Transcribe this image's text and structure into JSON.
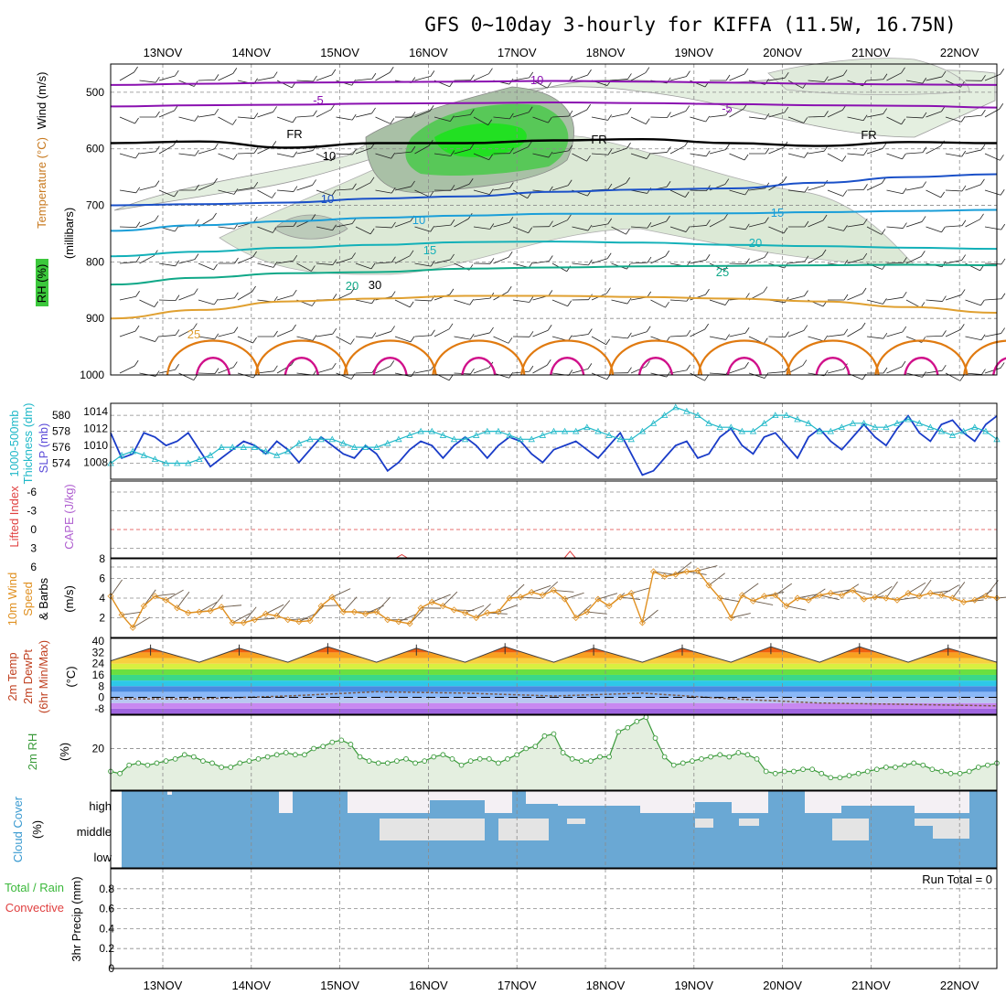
{
  "title": "GFS 0~10day 3-hourly for KIFFA (11.5W, 16.75N)",
  "days": [
    "13NOV",
    "14NOV",
    "15NOV",
    "16NOV",
    "17NOV",
    "18NOV",
    "19NOV",
    "20NOV",
    "21NOV",
    "22NOV"
  ],
  "colors": {
    "temp_warm": "#e07a10",
    "temp_hot": "#d0108a",
    "temp_cold": "#1a50c8",
    "temp_cool": "#1aa0d8",
    "temp_mild": "#10a888",
    "temp_neg": "#8a10b0",
    "rh": "#3cc83c",
    "slp": "#1a3cc8",
    "thick": "#20b8c8",
    "wind": "#e09020",
    "rh2m": "#3a9a3a",
    "cloud": "#6aa8d4"
  },
  "chart_data": [
    {
      "id": "upper_air",
      "type": "contour",
      "ylabel_parts": [
        "Wind (m/s)",
        "Temperature (°C)",
        "RH (%)",
        "(millibars)"
      ],
      "ylabel_colors": [
        "#000000",
        "#c87a20",
        "#3cc83c",
        "#000000"
      ],
      "y_ticks": [
        500,
        600,
        700,
        800,
        900,
        1000
      ],
      "ylim": [
        450,
        1000
      ],
      "isotherms": [
        {
          "label": "-10",
          "color": "#8a10b0",
          "levels": [
            487,
            485,
            483,
            482,
            481,
            480,
            481,
            483,
            485,
            486,
            487
          ]
        },
        {
          "label": "-5",
          "color": "#8a10b0",
          "levels": [
            525,
            523,
            522,
            520,
            519,
            518,
            519,
            521,
            523,
            524,
            527
          ]
        },
        {
          "label": "FR",
          "color": "#000000",
          "levels": [
            590,
            587,
            598,
            590,
            590,
            585,
            583,
            590,
            595,
            588,
            590
          ]
        },
        {
          "label": "-5",
          "color": "#1a50c8",
          "levels": [
            700,
            698,
            695,
            688,
            684,
            676,
            672,
            670,
            660,
            650,
            645
          ]
        },
        {
          "label": "10",
          "color": "#1a9ed8",
          "levels": [
            745,
            735,
            728,
            722,
            718,
            715,
            715,
            714,
            712,
            710,
            708
          ]
        },
        {
          "label": "15",
          "color": "#12b0b8",
          "levels": [
            790,
            782,
            775,
            770,
            765,
            764,
            766,
            770,
            772,
            775,
            777
          ]
        },
        {
          "label": "20",
          "color": "#10a888",
          "levels": [
            840,
            828,
            820,
            818,
            812,
            810,
            808,
            807,
            806,
            805,
            806
          ]
        },
        {
          "label": "25",
          "color": "#e0a030",
          "levels": [
            900,
            885,
            870,
            865,
            860,
            860,
            862,
            865,
            870,
            880,
            890
          ]
        }
      ],
      "rh_contours": [
        "10",
        "30"
      ],
      "fr_labels": [
        "FR",
        "FR",
        "FR"
      ],
      "temp_labels": [
        "-10",
        "-5",
        "-5",
        "10",
        "10",
        "15",
        "15",
        "20",
        "20",
        "25"
      ]
    },
    {
      "id": "slp_thickness",
      "type": "line",
      "ylabel_thick": "Thickness (dm)",
      "ylabel_thick_top": "1000-500mb",
      "ylabel_slp": "SLP (mb)",
      "thick_ticks": [
        574,
        576,
        578,
        580
      ],
      "slp_ticks": [
        1008,
        1010,
        1012,
        1014
      ],
      "thick_ylim": [
        572,
        581.5
      ],
      "slp_ylim": [
        1006,
        1015
      ],
      "slp": [
        1011.5,
        1008.5,
        1009.0,
        1011.5,
        1011.0,
        1010.0,
        1010.5,
        1011.5,
        1009.5,
        1007.5,
        1008.5,
        1009.5,
        1010.5,
        1010.0,
        1009.0,
        1010.5,
        1009.5,
        1008.0,
        1009.5,
        1011.0,
        1010.0,
        1009.0,
        1008.5,
        1010.0,
        1009.0,
        1007.0,
        1008.0,
        1009.5,
        1010.5,
        1010.0,
        1008.5,
        1010.0,
        1011.0,
        1010.0,
        1008.5,
        1010.0,
        1011.0,
        1010.5,
        1009.0,
        1008.0,
        1009.5,
        1010.0,
        1010.5,
        1009.5,
        1008.5,
        1010.0,
        1011.5,
        1009.0,
        1006.5,
        1007.0,
        1008.5,
        1010.0,
        1010.5,
        1008.5,
        1009.0,
        1011.0,
        1012.0,
        1010.0,
        1009.0,
        1011.0,
        1011.5,
        1010.0,
        1008.5,
        1011.0,
        1012.0,
        1010.5,
        1009.5,
        1011.0,
        1012.5,
        1011.0,
        1010.0,
        1012.0,
        1013.5,
        1011.5,
        1010.5,
        1012.5,
        1013.0,
        1011.5,
        1010.5,
        1012.5,
        1013.5
      ],
      "thickness": [
        574.0,
        575.0,
        575.5,
        575.0,
        574.5,
        574.0,
        574.0,
        574.0,
        574.5,
        575.0,
        576.0,
        576.0,
        576.0,
        576.0,
        575.5,
        575.0,
        575.5,
        576.5,
        577.0,
        577.0,
        577.0,
        576.5,
        576.0,
        576.0,
        576.0,
        576.5,
        577.0,
        577.5,
        578.0,
        578.0,
        577.5,
        577.0,
        577.0,
        577.5,
        578.0,
        578.0,
        577.5,
        577.0,
        577.0,
        577.5,
        578.0,
        578.0,
        578.0,
        578.5,
        578.0,
        577.5,
        577.0,
        577.0,
        578.0,
        579.0,
        580.0,
        581.0,
        580.5,
        580.0,
        579.0,
        578.5,
        578.5,
        578.0,
        578.0,
        579.0,
        580.0,
        580.0,
        579.5,
        579.0,
        578.0,
        578.0,
        578.5,
        579.0,
        579.0,
        578.5,
        578.5,
        579.0,
        579.5,
        579.0,
        578.5,
        578.0,
        577.5,
        578.0,
        578.5,
        578.0,
        577.0
      ]
    },
    {
      "id": "stability",
      "type": "line",
      "ylabel_li": "Lifted Index",
      "ylabel_cape": "CAPE (J/kg)",
      "y_ticks": [
        "-6",
        "-3",
        "0",
        "3",
        "6"
      ],
      "ylim": [
        -6,
        6
      ],
      "cape_spikes": [
        {
          "day_index": 2.7,
          "value": 6
        },
        {
          "day_index": 4.6,
          "value": 12
        }
      ]
    },
    {
      "id": "wind10m",
      "type": "line",
      "ylabel_1": "10m Wind",
      "ylabel_2": "Speed",
      "ylabel_3": "& Barbs",
      "unit": "(m/s)",
      "y_ticks": [
        2,
        4,
        6,
        8
      ],
      "ylim": [
        0,
        8
      ],
      "speed": [
        4.2,
        2.3,
        1.0,
        3.2,
        4.2,
        3.8,
        3.0,
        2.5,
        2.6,
        2.7,
        3.1,
        1.5,
        1.5,
        1.8,
        2.4,
        2.2,
        1.8,
        1.6,
        1.7,
        3.2,
        4.1,
        2.6,
        2.6,
        2.4,
        2.6,
        1.8,
        1.6,
        1.4,
        3.0,
        3.6,
        3.2,
        2.8,
        2.5,
        2.0,
        2.5,
        2.6,
        4.0,
        4.1,
        4.6,
        4.3,
        4.8,
        3.9,
        2.0,
        2.6,
        3.9,
        3.2,
        4.1,
        4.5,
        1.5,
        6.7,
        6.2,
        6.4,
        6.7,
        6.8,
        5.3,
        4.0,
        2.0,
        4.3,
        3.7,
        4.2,
        4.3,
        3.2,
        4.0,
        3.8,
        4.3,
        4.5,
        4.3,
        4.8,
        3.9,
        4.1,
        4.0,
        3.8,
        4.5,
        4.2,
        4.5,
        4.3,
        4.0,
        3.6,
        3.8,
        4.2,
        4.0
      ]
    },
    {
      "id": "temp2m",
      "type": "area",
      "ylabel_1": "2m Temp",
      "ylabel_2": "2m DewPt",
      "ylabel_3": "(6hr Min/Max)",
      "unit": "(°C)",
      "y_ticks": [
        "-8",
        "0",
        "8",
        "16",
        "24",
        "32",
        "40"
      ],
      "ylim": [
        -12,
        42
      ],
      "temp_max": [
        35,
        35,
        36,
        35,
        36,
        35,
        35,
        36,
        36,
        35,
        35
      ],
      "temp_min": [
        26,
        25,
        25,
        25,
        25,
        25,
        25,
        25,
        25,
        25,
        25
      ],
      "dewpoint": [
        -1,
        -1,
        1,
        4,
        3,
        1,
        3,
        -1,
        -4,
        -5,
        -6
      ]
    },
    {
      "id": "rh2m",
      "type": "line",
      "ylabel": "2m RH",
      "unit": "(%)",
      "y_ticks": [
        20
      ],
      "ylim": [
        0,
        36
      ],
      "rh": [
        9,
        8,
        12,
        13,
        12,
        13,
        14,
        15,
        17,
        16,
        14,
        13,
        11,
        11,
        13,
        14,
        15,
        16,
        17,
        18,
        17,
        17,
        20,
        21,
        23,
        24,
        22,
        16,
        14,
        13,
        13,
        14,
        15,
        13,
        14,
        16,
        17,
        15,
        12,
        14,
        15,
        15,
        13,
        15,
        17,
        20,
        21,
        26,
        27,
        18,
        15,
        14,
        14,
        16,
        16,
        28,
        30,
        33,
        35,
        25,
        16,
        12,
        13,
        14,
        15,
        16,
        17,
        16,
        18,
        17,
        15,
        9,
        8,
        9,
        9,
        10,
        10,
        8,
        6,
        6,
        7,
        8,
        9,
        10,
        11,
        11,
        12,
        13,
        12,
        10,
        9,
        8,
        8,
        9,
        11,
        12,
        13
      ]
    },
    {
      "id": "cloud_cover",
      "type": "bar",
      "ylabel_1": "Cloud Cover",
      "unit": "(%)",
      "levels": [
        "high",
        "middle",
        "low"
      ]
    },
    {
      "id": "precip",
      "type": "bar",
      "ylabel_left_1": "Total / Rain",
      "ylabel_left_2": "Convective",
      "ylabel": "3hr Precip (mm)",
      "y_ticks": [
        "0",
        "0.2",
        "0.4",
        "0.6",
        "0.8"
      ],
      "ylim": [
        0,
        1.0
      ],
      "run_total_label": "Run Total = 0",
      "values": [
        0,
        0,
        0,
        0,
        0,
        0,
        0,
        0,
        0,
        0
      ]
    }
  ]
}
